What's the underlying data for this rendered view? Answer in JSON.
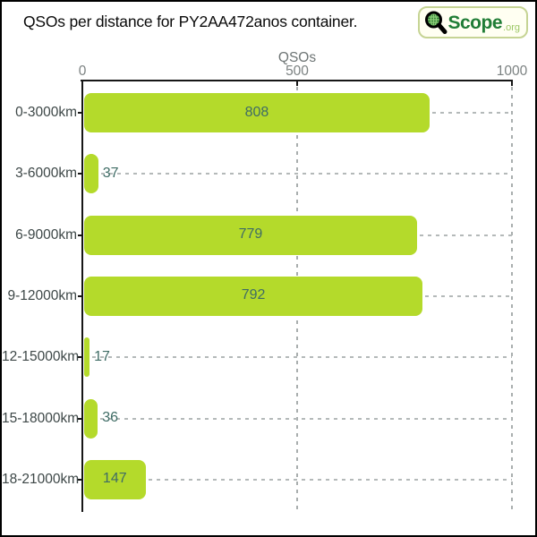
{
  "title": "QSOs per distance for PY2AA472anos container.",
  "logo": {
    "brand": "Scope",
    "suffix": ".org",
    "icon": "magnifier-globe-icon",
    "brand_color": "#207d36",
    "suffix_color": "#9cc765"
  },
  "y_axis_title_clipped": "km",
  "chart_data": {
    "type": "bar",
    "orientation": "horizontal",
    "title": "QSOs per distance for PY2AA472anos container.",
    "xlabel": "QSOs",
    "ylabel": "",
    "categories": [
      "0-3000km",
      "3-6000km",
      "6-9000km",
      "9-12000km",
      "12-15000km",
      "15-18000km",
      "18-21000km"
    ],
    "values": [
      808,
      37,
      779,
      792,
      17,
      36,
      147
    ],
    "xlim": [
      0,
      1000
    ],
    "x_ticks": [
      0,
      500,
      1000
    ],
    "grid": "dashed vertical at ticks, dashed horizontal from bar end to right edge",
    "legend": "none",
    "bar_color": "#b4da2b",
    "value_label_color": "#3f6c65",
    "category_label_color": "#3d4747",
    "tick_label_color": "#7c8282",
    "axis_color": "#161616",
    "grid_color": "#b0b5b5"
  }
}
